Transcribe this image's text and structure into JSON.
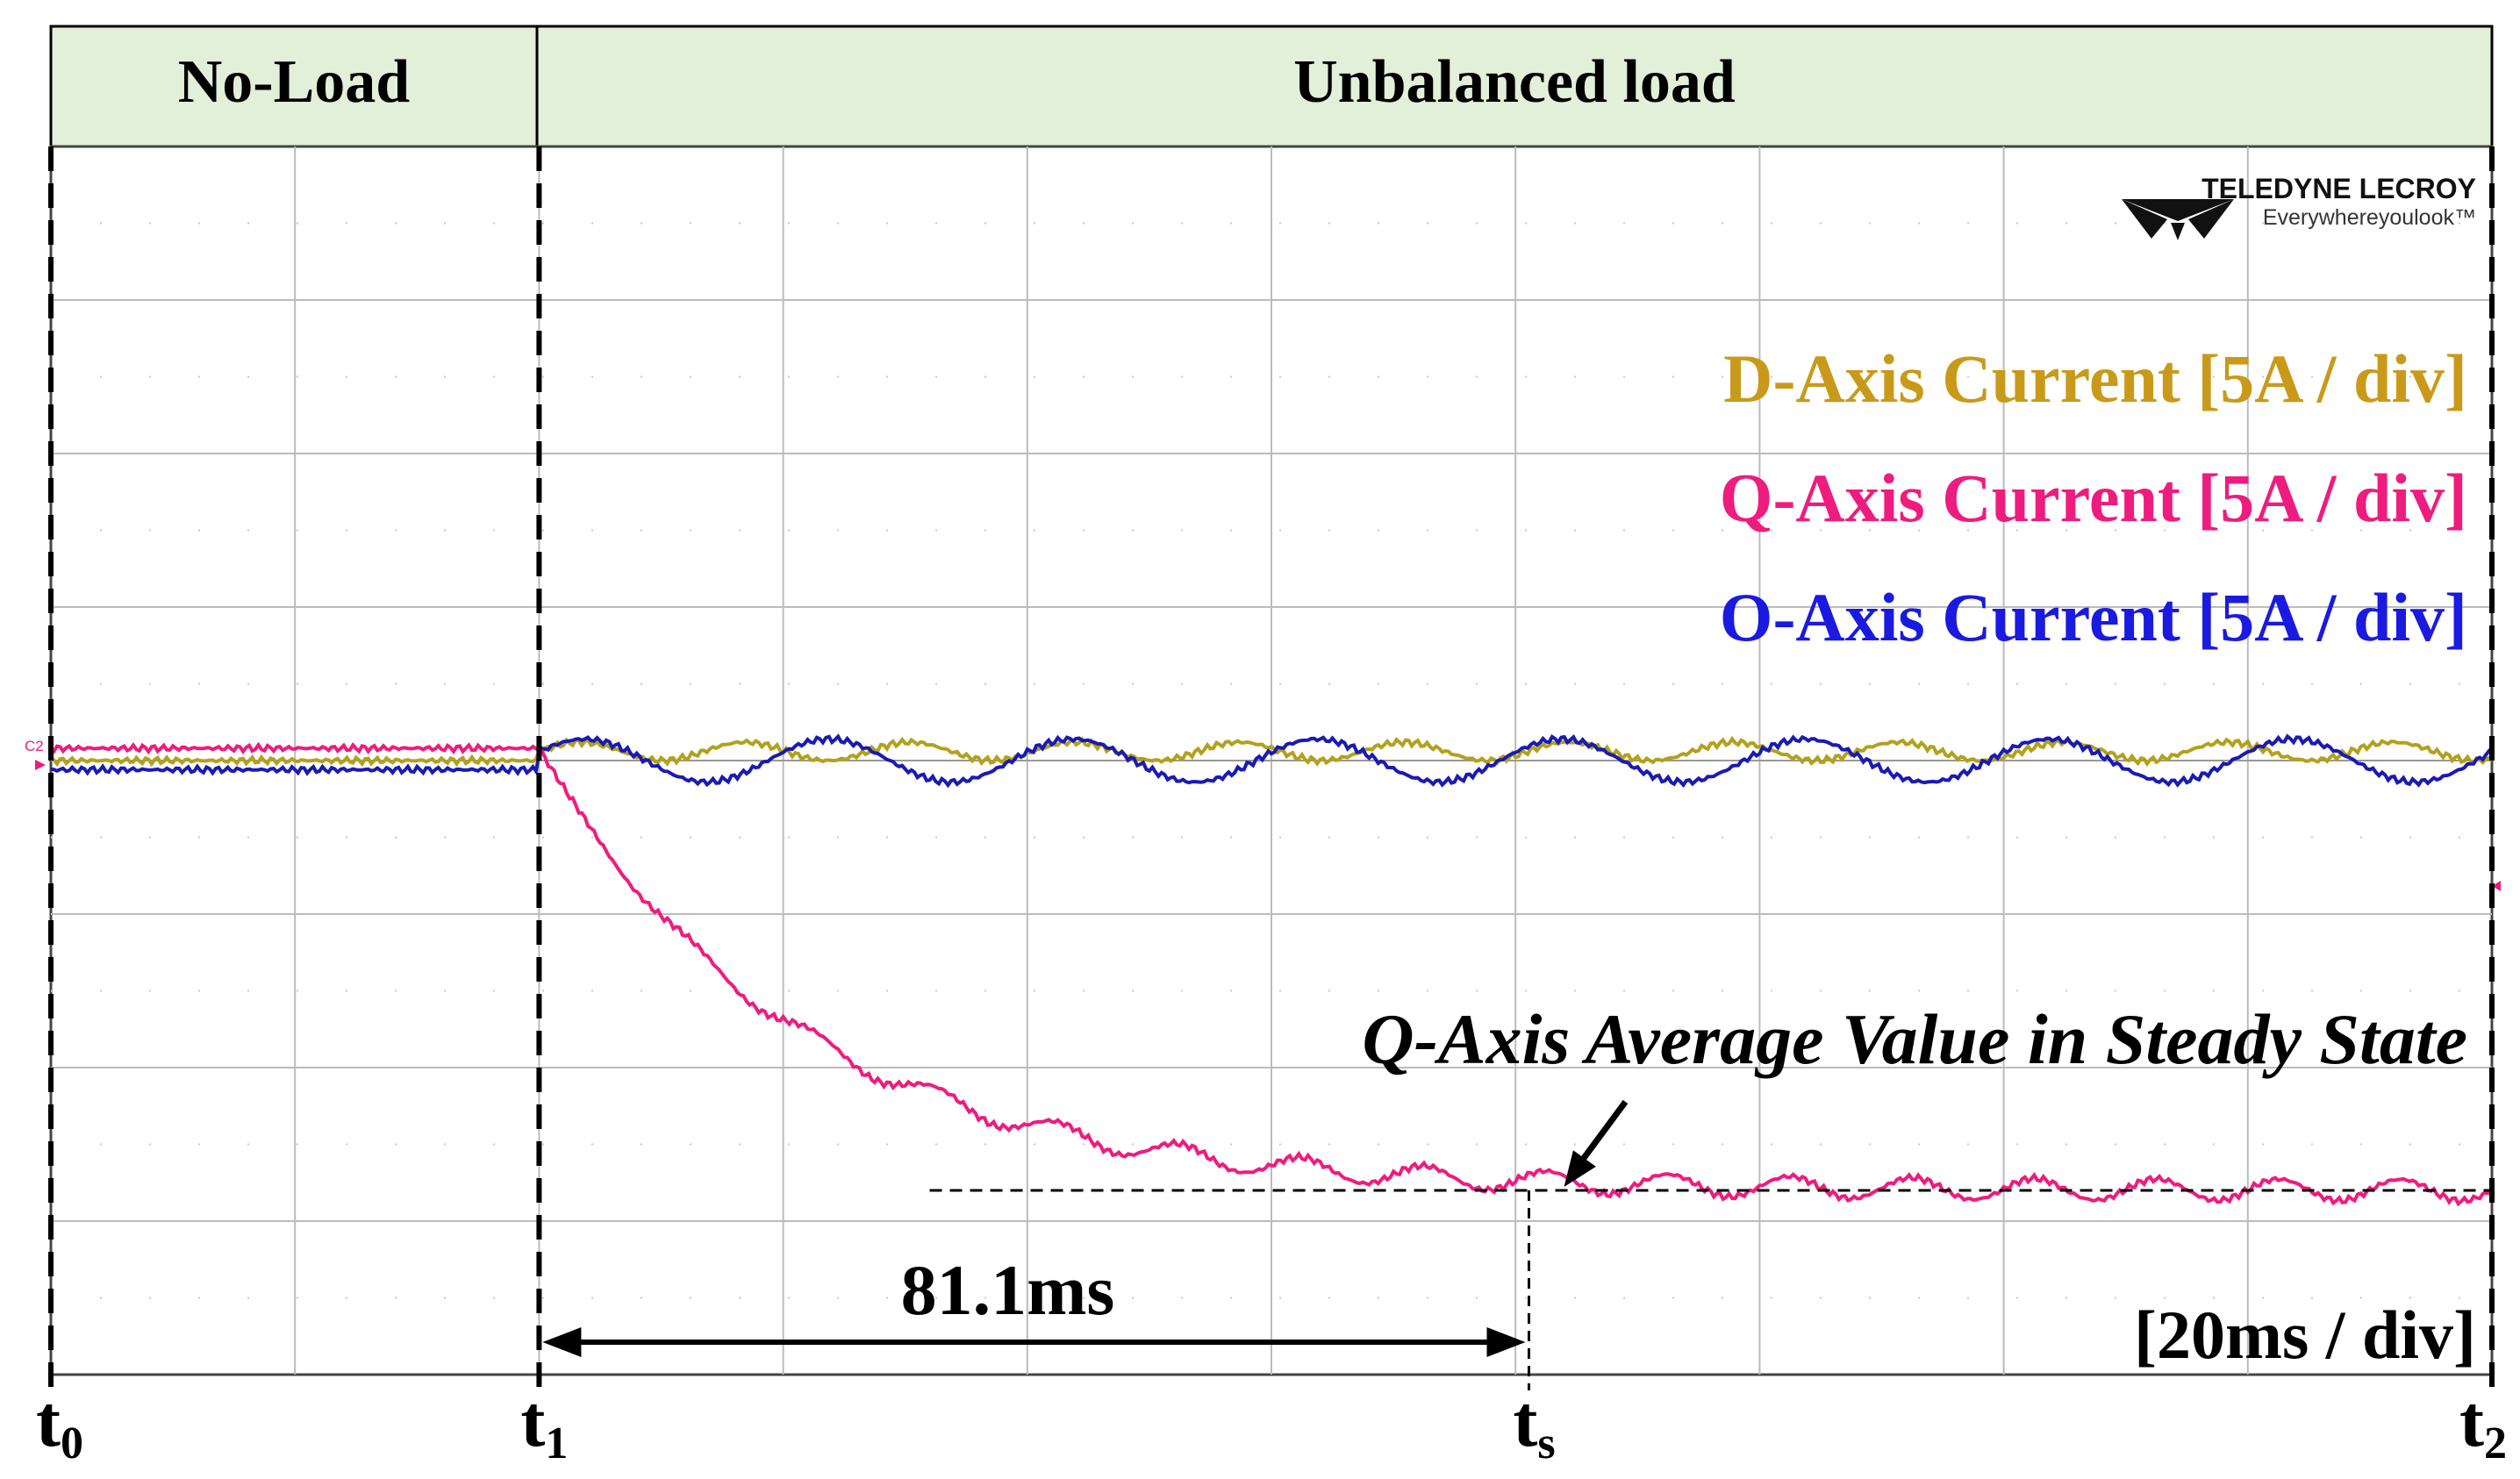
{
  "chart_data": {
    "type": "line",
    "instrument": {
      "brand": "TELEDYNE LECROY",
      "tagline": "Everywhereyoulook™"
    },
    "header": {
      "phase1": "No-Load",
      "phase2": "Unbalanced load"
    },
    "legend": [
      {
        "label": "D-Axis Current [5A / div]",
        "color": "#c99a1a"
      },
      {
        "label": "Q-Axis Current [5A / div]",
        "color": "#ee1c7e"
      },
      {
        "label": "O-Axis Current [5A / div]",
        "color": "#1a1ae0"
      }
    ],
    "channel_marker": "C2",
    "timebase": "[20ms / div]",
    "time_unit": "ms",
    "vertical_unit": "A",
    "x_range": [
      0,
      200
    ],
    "y_range": [
      -20,
      20
    ],
    "events": {
      "t0": 0,
      "t1": 40,
      "ts": 121.1,
      "t2": 200
    },
    "event_labels": {
      "t0": "t0",
      "t1": "t1",
      "ts": "ts",
      "t2": "t2"
    },
    "settling_time_label": "81.1ms",
    "annotation": "Q-Axis Average Value in Steady State",
    "series": [
      {
        "name": "D-Axis Current",
        "color": "#b3a11c",
        "pre_value": 0,
        "post_mean": 0.3,
        "ripple_amplitude": 0.3,
        "ripple_period_ms": 13.5
      },
      {
        "name": "Q-Axis Current",
        "color": "#ee1c7e",
        "pre_value": 0.4,
        "steady_value": -14.0,
        "time_constant_ms": 21,
        "ripple_amplitude": 0.35,
        "ripple_period_ms": 10
      },
      {
        "name": "O-Axis Current",
        "color": "#1a1ab4",
        "pre_value": -0.3,
        "post_mean": 0,
        "ripple_amplitude": 0.7,
        "ripple_period_ms": 20
      }
    ]
  }
}
